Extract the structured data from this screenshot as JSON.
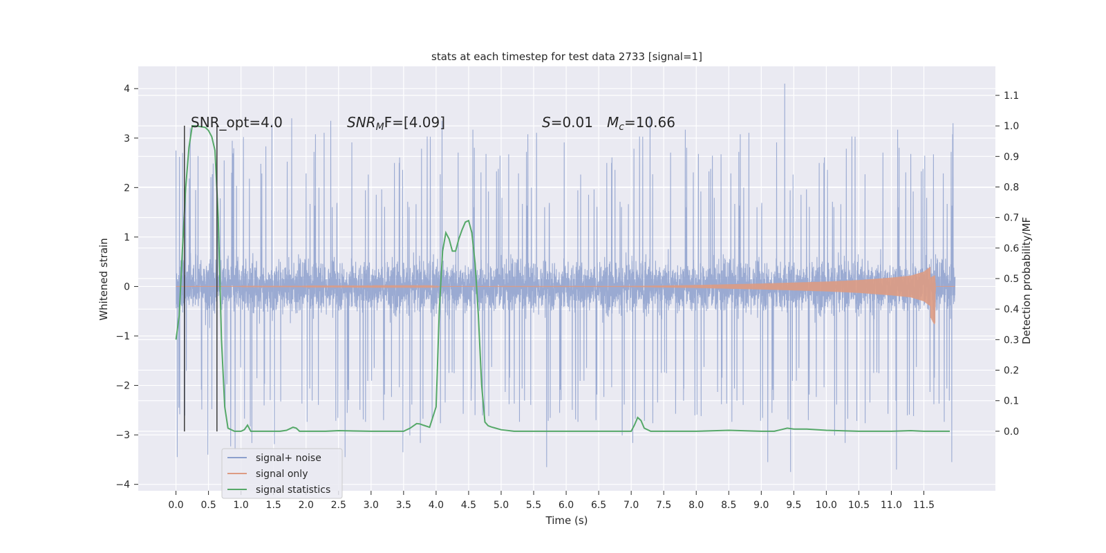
{
  "chart_data": {
    "type": "line",
    "title": "stats at each timestep for test data 2733 [signal=1]",
    "xlabel": "Time (s)",
    "ylabel": "Whitened strain",
    "ylabel_right": "Detection probability/MF",
    "xlim": [
      -0.58,
      12.6
    ],
    "ylim": [
      -4.13,
      4.45
    ],
    "ylim_right": [
      -0.195,
      1.195
    ],
    "x_ticks": [
      "0.0",
      "0.5",
      "1.0",
      "1.5",
      "2.0",
      "2.5",
      "3.0",
      "3.5",
      "4.0",
      "4.5",
      "5.0",
      "5.5",
      "6.0",
      "6.5",
      "7.0",
      "7.5",
      "8.0",
      "8.5",
      "9.0",
      "9.5",
      "10.0",
      "10.5",
      "11.0",
      "11.5"
    ],
    "y_ticks": [
      "4",
      "3",
      "2",
      "1",
      "0",
      "−1",
      "−2",
      "−3",
      "−4"
    ],
    "y_ticks_right": [
      "1.1",
      "1.0",
      "0.9",
      "0.8",
      "0.7",
      "0.6",
      "0.5",
      "0.4",
      "0.3",
      "0.2",
      "0.1",
      "0.0"
    ],
    "grid": true,
    "legend_position": "lower-left",
    "legend": [
      "signal+ noise",
      "signal only",
      "signal statistics"
    ],
    "annotations": {
      "snr_opt": "SNR_opt=4.0",
      "snr_mf_main": "SNR",
      "snr_mf_sub": "M",
      "snr_mf_rest": "F=[4.09]",
      "s_main": "S",
      "s_rest": "=0.01",
      "mc_main": "M",
      "mc_sub": "c",
      "mc_rest": "=10.66"
    },
    "vlines_x": [
      0.13,
      0.63
    ],
    "series": [
      {
        "name": "signal+ noise",
        "color": "#8c9fcd",
        "x_range": [
          0.0,
          11.98
        ],
        "typical_band": [
          -1.5,
          1.4
        ],
        "extremes": [
          [
            0.0,
            2.75
          ],
          [
            0.02,
            -3.45
          ],
          [
            0.22,
            3.2
          ],
          [
            0.49,
            -3.4
          ],
          [
            0.91,
            -3.3
          ],
          [
            1.78,
            3.4
          ],
          [
            2.38,
            3.35
          ],
          [
            2.6,
            -3.45
          ],
          [
            3.49,
            -3.35
          ],
          [
            4.09,
            3.35
          ],
          [
            4.6,
            -2.6
          ],
          [
            5.7,
            -3.65
          ],
          [
            7.29,
            3.45
          ],
          [
            9.1,
            -3.55
          ],
          [
            9.36,
            4.1
          ],
          [
            9.45,
            -3.75
          ],
          [
            11.08,
            -3.7
          ],
          [
            11.95,
            3.3
          ],
          [
            11.93,
            -3.55
          ]
        ]
      },
      {
        "name": "signal only",
        "color": "#dd9b83",
        "x": [
          0.0,
          7.0,
          8.0,
          9.0,
          10.0,
          10.5,
          11.0,
          11.3,
          11.5,
          11.6,
          11.65,
          11.67,
          11.68,
          11.98
        ],
        "envelope": [
          0.0,
          0.01,
          0.03,
          0.06,
          0.1,
          0.13,
          0.18,
          0.22,
          0.3,
          0.4,
          0.48,
          0.5,
          0.0,
          0.0
        ]
      },
      {
        "name": "signal statistics",
        "color": "#55a868",
        "x": [
          0.0,
          0.05,
          0.1,
          0.15,
          0.2,
          0.25,
          0.3,
          0.4,
          0.45,
          0.5,
          0.55,
          0.6,
          0.65,
          0.7,
          0.75,
          0.8,
          0.9,
          1.0,
          1.05,
          1.1,
          1.15,
          1.2,
          1.5,
          1.6,
          1.7,
          1.8,
          1.85,
          1.9,
          2.0,
          2.3,
          2.5,
          3.0,
          3.5,
          3.6,
          3.7,
          3.75,
          3.8,
          3.9,
          4.0,
          4.05,
          4.1,
          4.15,
          4.2,
          4.25,
          4.3,
          4.35,
          4.4,
          4.45,
          4.5,
          4.55,
          4.6,
          4.65,
          4.7,
          4.75,
          4.8,
          4.85,
          4.9,
          5.0,
          5.2,
          5.5,
          6.0,
          6.5,
          7.0,
          7.05,
          7.1,
          7.15,
          7.2,
          7.3,
          7.5,
          8.0,
          8.5,
          9.0,
          9.2,
          9.3,
          9.4,
          9.5,
          9.6,
          9.7,
          10.0,
          10.5,
          11.0,
          11.3,
          11.5,
          11.9
        ],
        "y": [
          0.3,
          0.38,
          0.6,
          0.8,
          0.93,
          1.0,
          1.0,
          0.997,
          0.995,
          0.985,
          0.965,
          0.92,
          0.7,
          0.3,
          0.08,
          0.01,
          0.0,
          0.0,
          0.005,
          0.02,
          0.0,
          0.0,
          0.0,
          0.0,
          0.003,
          0.013,
          0.01,
          0.0,
          0.0,
          0.0,
          0.002,
          0.0,
          0.0,
          0.01,
          0.025,
          0.024,
          0.02,
          0.013,
          0.08,
          0.4,
          0.59,
          0.65,
          0.63,
          0.59,
          0.59,
          0.63,
          0.66,
          0.685,
          0.69,
          0.65,
          0.55,
          0.38,
          0.15,
          0.03,
          0.018,
          0.014,
          0.011,
          0.005,
          0.0,
          0.0,
          0.0,
          0.0,
          0.0,
          0.02,
          0.045,
          0.035,
          0.01,
          0.0,
          0.0,
          0.0,
          0.003,
          0.0,
          0.0,
          0.005,
          0.01,
          0.007,
          0.007,
          0.007,
          0.003,
          0.0,
          0.0,
          0.002,
          0.0,
          0.0
        ]
      }
    ]
  }
}
